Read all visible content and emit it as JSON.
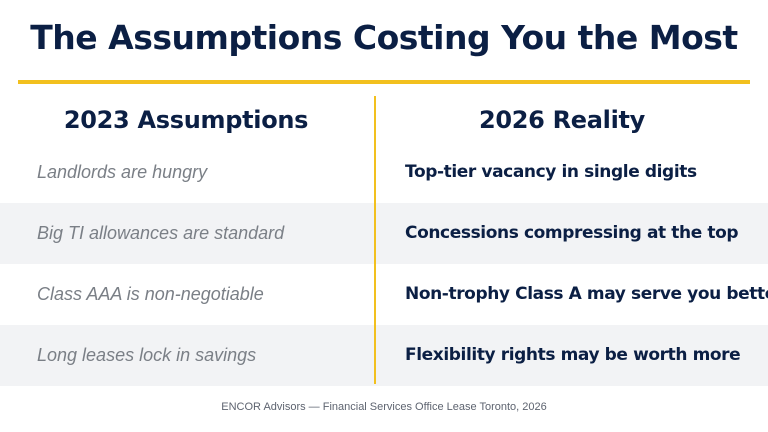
{
  "slide": {
    "title": "The Assumptions Costing You the Most",
    "accent_color": "#f2c01e",
    "left_header": "2023 Assumptions",
    "right_header": "2026 Reality",
    "rows": [
      {
        "assumption": "Landlords are hungry",
        "reality": "Top-tier vacancy in single digits"
      },
      {
        "assumption": "Big TI allowances are standard",
        "reality": "Concessions compressing at the top"
      },
      {
        "assumption": "Class AAA is non-negotiable",
        "reality": "Non-trophy Class A may serve you better"
      },
      {
        "assumption": "Long leases lock in savings",
        "reality": "Flexibility rights may be worth more"
      }
    ],
    "footer": "ENCOR Advisors — Financial Services Office Lease Toronto, 2026"
  }
}
